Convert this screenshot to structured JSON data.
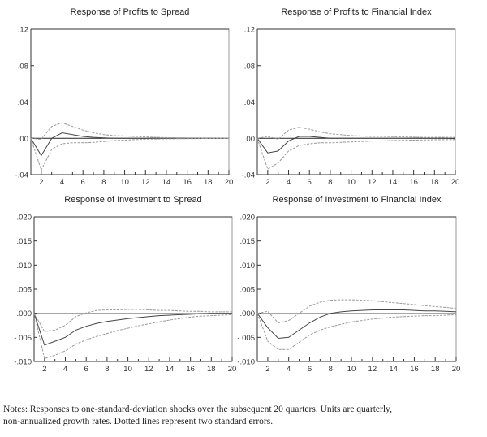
{
  "chart_data": [
    {
      "type": "line",
      "title": "Response of Profits to Spread",
      "x": [
        1,
        2,
        3,
        4,
        5,
        6,
        7,
        8,
        9,
        10,
        11,
        12,
        13,
        14,
        15,
        16,
        17,
        18,
        19,
        20
      ],
      "xticks": [
        "2",
        "4",
        "6",
        "8",
        "10",
        "12",
        "14",
        "16",
        "18",
        "20"
      ],
      "yticks": [
        ".12",
        ".08",
        ".04",
        ".00",
        "-.04"
      ],
      "ytick_values": [
        0.12,
        0.08,
        0.04,
        0.0,
        -0.04
      ],
      "ylim": [
        -0.04,
        0.12
      ],
      "xlim": [
        1,
        20
      ],
      "series": [
        {
          "style": "solid",
          "values": [
            0,
            -0.019,
            0.0,
            0.006,
            0.004,
            0.002,
            0.001,
            0.0005,
            0,
            0,
            0,
            0,
            0,
            0,
            0,
            0,
            0,
            0,
            0,
            0
          ]
        },
        {
          "style": "dashed",
          "values": [
            0,
            -0.001,
            0.013,
            0.017,
            0.013,
            0.009,
            0.006,
            0.004,
            0.003,
            0.0025,
            0.002,
            0.0015,
            0.001,
            0.0008,
            0.0006,
            0.0005,
            0.0004,
            0.0003,
            0.0002,
            0.0002
          ]
        },
        {
          "style": "dashed",
          "values": [
            0,
            -0.035,
            -0.012,
            -0.006,
            -0.005,
            -0.005,
            -0.0045,
            -0.0035,
            -0.0025,
            -0.002,
            -0.0015,
            -0.001,
            -0.0008,
            -0.0006,
            -0.0005,
            -0.0004,
            -0.0003,
            -0.0002,
            -0.0002,
            -0.0002
          ]
        }
      ]
    },
    {
      "type": "line",
      "title": "Response of Profits to Financial Index",
      "x": [
        1,
        2,
        3,
        4,
        5,
        6,
        7,
        8,
        9,
        10,
        11,
        12,
        13,
        14,
        15,
        16,
        17,
        18,
        19,
        20
      ],
      "xticks": [
        "2",
        "4",
        "6",
        "8",
        "10",
        "12",
        "14",
        "16",
        "18",
        "20"
      ],
      "yticks": [
        ".12",
        ".08",
        ".04",
        ".00",
        "-.04"
      ],
      "ytick_values": [
        0.12,
        0.08,
        0.04,
        0.0,
        -0.04
      ],
      "ylim": [
        -0.04,
        0.12
      ],
      "xlim": [
        1,
        20
      ],
      "series": [
        {
          "style": "solid",
          "values": [
            0,
            -0.016,
            -0.014,
            -0.003,
            0.002,
            0.002,
            0.001,
            0,
            0,
            0,
            0,
            0,
            0,
            0,
            0,
            0,
            0,
            0,
            0,
            -0.0005
          ]
        },
        {
          "style": "dashed",
          "values": [
            0,
            0.002,
            -0.001,
            0.009,
            0.012,
            0.01,
            0.007,
            0.005,
            0.004,
            0.003,
            0.0025,
            0.002,
            0.002,
            0.0018,
            0.0015,
            0.0012,
            0.001,
            0.001,
            0.001,
            0.001
          ]
        },
        {
          "style": "dashed",
          "values": [
            0,
            -0.034,
            -0.027,
            -0.014,
            -0.008,
            -0.006,
            -0.005,
            -0.005,
            -0.0045,
            -0.004,
            -0.0035,
            -0.003,
            -0.0028,
            -0.0025,
            -0.0022,
            -0.002,
            -0.0018,
            -0.0016,
            -0.0015,
            -0.0015
          ]
        }
      ]
    },
    {
      "type": "line",
      "title": "Response of Investment to Spread",
      "x": [
        1,
        2,
        3,
        4,
        5,
        6,
        7,
        8,
        9,
        10,
        11,
        12,
        13,
        14,
        15,
        16,
        17,
        18,
        19,
        20
      ],
      "xticks": [
        "2",
        "4",
        "6",
        "8",
        "10",
        "12",
        "14",
        "16",
        "18",
        "20"
      ],
      "yticks": [
        ".020",
        ".015",
        ".010",
        ".005",
        ".000",
        "-.005",
        "-.010"
      ],
      "ytick_values": [
        0.02,
        0.015,
        0.01,
        0.005,
        0.0,
        -0.005,
        -0.01
      ],
      "ylim": [
        -0.01,
        0.02
      ],
      "xlim": [
        1,
        20
      ],
      "series": [
        {
          "style": "solid",
          "values": [
            0,
            -0.0066,
            -0.0058,
            -0.005,
            -0.0035,
            -0.0027,
            -0.0021,
            -0.0017,
            -0.0014,
            -0.0011,
            -0.0009,
            -0.0007,
            -0.0005,
            -0.0004,
            -0.0003,
            -0.0002,
            -0.0001,
            0,
            0,
            0
          ]
        },
        {
          "style": "dashed",
          "values": [
            0,
            -0.0038,
            -0.0035,
            -0.0025,
            -0.0007,
            0.0001,
            0.0006,
            0.0007,
            0.0007,
            0.0008,
            0.0008,
            0.0007,
            0.0006,
            0.0006,
            0.0005,
            0.0004,
            0.0004,
            0.0003,
            0.0003,
            0.0003
          ]
        },
        {
          "style": "dashed",
          "values": [
            0,
            -0.0094,
            -0.0087,
            -0.0078,
            -0.0064,
            -0.0055,
            -0.0048,
            -0.0042,
            -0.0036,
            -0.0031,
            -0.0026,
            -0.0022,
            -0.0018,
            -0.0014,
            -0.0011,
            -0.0008,
            -0.0006,
            -0.0005,
            -0.0004,
            -0.0003
          ]
        }
      ]
    },
    {
      "type": "line",
      "title": "Response of Investment to Financial Index",
      "x": [
        1,
        2,
        3,
        4,
        5,
        6,
        7,
        8,
        9,
        10,
        11,
        12,
        13,
        14,
        15,
        16,
        17,
        18,
        19,
        20
      ],
      "xticks": [
        "2",
        "4",
        "6",
        "8",
        "10",
        "12",
        "14",
        "16",
        "18",
        "20"
      ],
      "yticks": [
        ".020",
        ".015",
        ".010",
        ".005",
        ".000",
        "-.005",
        "-.010"
      ],
      "ytick_values": [
        0.02,
        0.015,
        0.01,
        0.005,
        0.0,
        -0.005,
        -0.01
      ],
      "ylim": [
        -0.01,
        0.02
      ],
      "xlim": [
        1,
        20
      ],
      "series": [
        {
          "style": "solid",
          "values": [
            0,
            -0.003,
            -0.0052,
            -0.005,
            -0.0035,
            -0.002,
            -0.0008,
            0,
            0.0003,
            0.0005,
            0.0006,
            0.0007,
            0.0007,
            0.0007,
            0.0007,
            0.0006,
            0.0005,
            0.0005,
            0.0004,
            0.0003
          ]
        },
        {
          "style": "dashed",
          "values": [
            0,
            0.0004,
            -0.002,
            -0.0015,
            0,
            0.0015,
            0.0023,
            0.0027,
            0.0028,
            0.0028,
            0.0027,
            0.0026,
            0.0024,
            0.0022,
            0.002,
            0.0018,
            0.0016,
            0.0014,
            0.0012,
            0.001
          ]
        },
        {
          "style": "dashed",
          "values": [
            0,
            -0.0058,
            -0.0075,
            -0.0075,
            -0.006,
            -0.0045,
            -0.0035,
            -0.0028,
            -0.0023,
            -0.0018,
            -0.0015,
            -0.0012,
            -0.001,
            -0.0008,
            -0.0007,
            -0.0006,
            -0.0005,
            -0.0005,
            -0.0004,
            -0.0003
          ]
        }
      ]
    }
  ],
  "notes": {
    "line1": "Notes:  Responses to one-standard-deviation shocks over the subsequent 20 quarters.  Units are quarterly,",
    "line2": "non-annualized growth rates.  Dotted lines represent two standard errors."
  }
}
